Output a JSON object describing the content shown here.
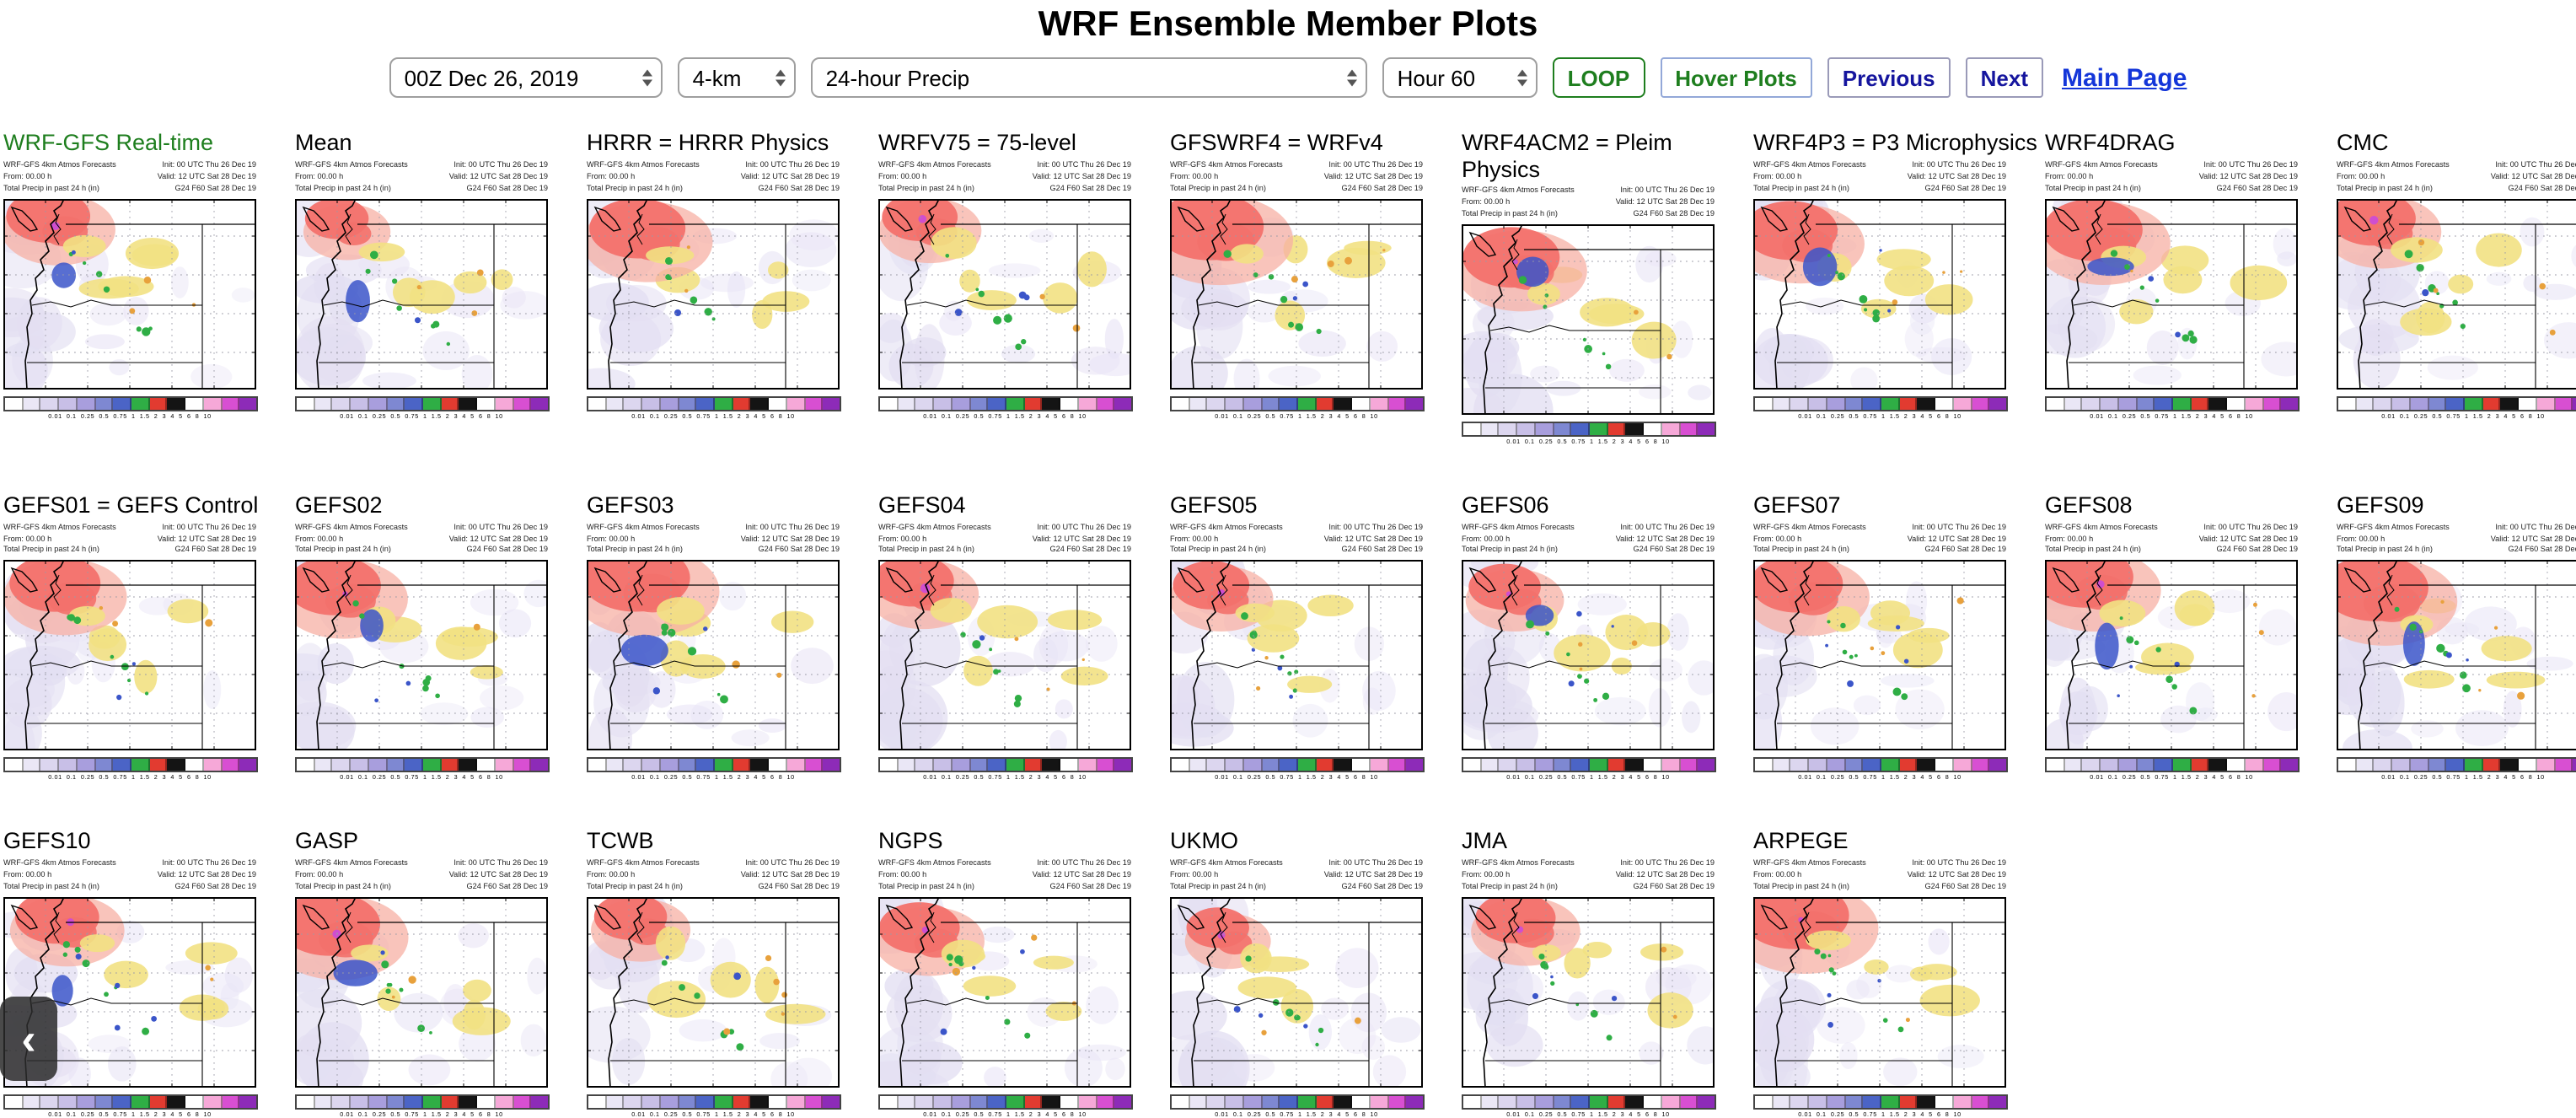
{
  "header": {
    "title": "WRF Ensemble Member Plots"
  },
  "toolbar": {
    "date_select": "00Z Dec 26, 2019",
    "resolution_select": "4-km",
    "product_select": "24-hour Precip",
    "hour_select": "Hour 60",
    "loop_label": "LOOP",
    "hover_label": "Hover Plots",
    "previous_label": "Previous",
    "next_label": "Next",
    "main_page_label": "Main Page"
  },
  "nav": {
    "back_chevron": "‹"
  },
  "panel_meta": {
    "left_lines": [
      "WRF-GFS 4km Atmos Forecasts",
      "From: 00.00 h",
      "Total Precip in past 24 h (in)"
    ],
    "right_lines": [
      "Init: 00 UTC Thu 26 Dec 19",
      "Valid: 12 UTC Sat 28 Dec 19",
      "G24 F60 Sat 28 Dec 19"
    ]
  },
  "colorbar": {
    "colors": [
      "#ffffff",
      "#eae7f6",
      "#dcd6ef",
      "#c8bfe7",
      "#a89edd",
      "#7e88d2",
      "#4b64c6",
      "#2fae45",
      "#e23b30",
      "#141414",
      "#ffffff",
      "#f6a8d8",
      "#d84fd2",
      "#8d2bb8"
    ],
    "ticks": "0.01  0.1  0.25  0.5  0.75  1  1.5  2  3  4  5  6  8  10"
  },
  "map_palette": {
    "lavender": "#e3dff2",
    "pale": "#e9e5f6",
    "red": "#f3716c",
    "salmon": "#f7b0a4",
    "yellow": "#f2e183",
    "green": "#2fae45",
    "blue": "#3b55c9",
    "magenta": "#cf4ecf",
    "orange": "#e8a13c"
  },
  "rows": [
    {
      "panels": [
        {
          "label": "WRF-GFS Real-time",
          "green": true
        },
        {
          "label": "Mean"
        },
        {
          "label": "HRRR = HRRR Physics"
        },
        {
          "label": "WRFV75 = 75-level"
        },
        {
          "label": "GFSWRF4 = WRFv4"
        },
        {
          "label": "WRF4ACM2 = Pleim Physics"
        },
        {
          "label": "WRF4P3 = P3 Microphysics"
        },
        {
          "label": "WRF4DRAG"
        },
        {
          "label": "CMC"
        }
      ]
    },
    {
      "panels": [
        {
          "label": "GEFS01 = GEFS Control"
        },
        {
          "label": "GEFS02"
        },
        {
          "label": "GEFS03"
        },
        {
          "label": "GEFS04"
        },
        {
          "label": "GEFS05"
        },
        {
          "label": "GEFS06"
        },
        {
          "label": "GEFS07"
        },
        {
          "label": "GEFS08"
        },
        {
          "label": "GEFS09"
        }
      ]
    },
    {
      "panels": [
        {
          "label": "GEFS10"
        },
        {
          "label": "GASP"
        },
        {
          "label": "TCWB"
        },
        {
          "label": "NGPS"
        },
        {
          "label": "UKMO"
        },
        {
          "label": "JMA"
        },
        {
          "label": "ARPEGE"
        }
      ]
    }
  ]
}
